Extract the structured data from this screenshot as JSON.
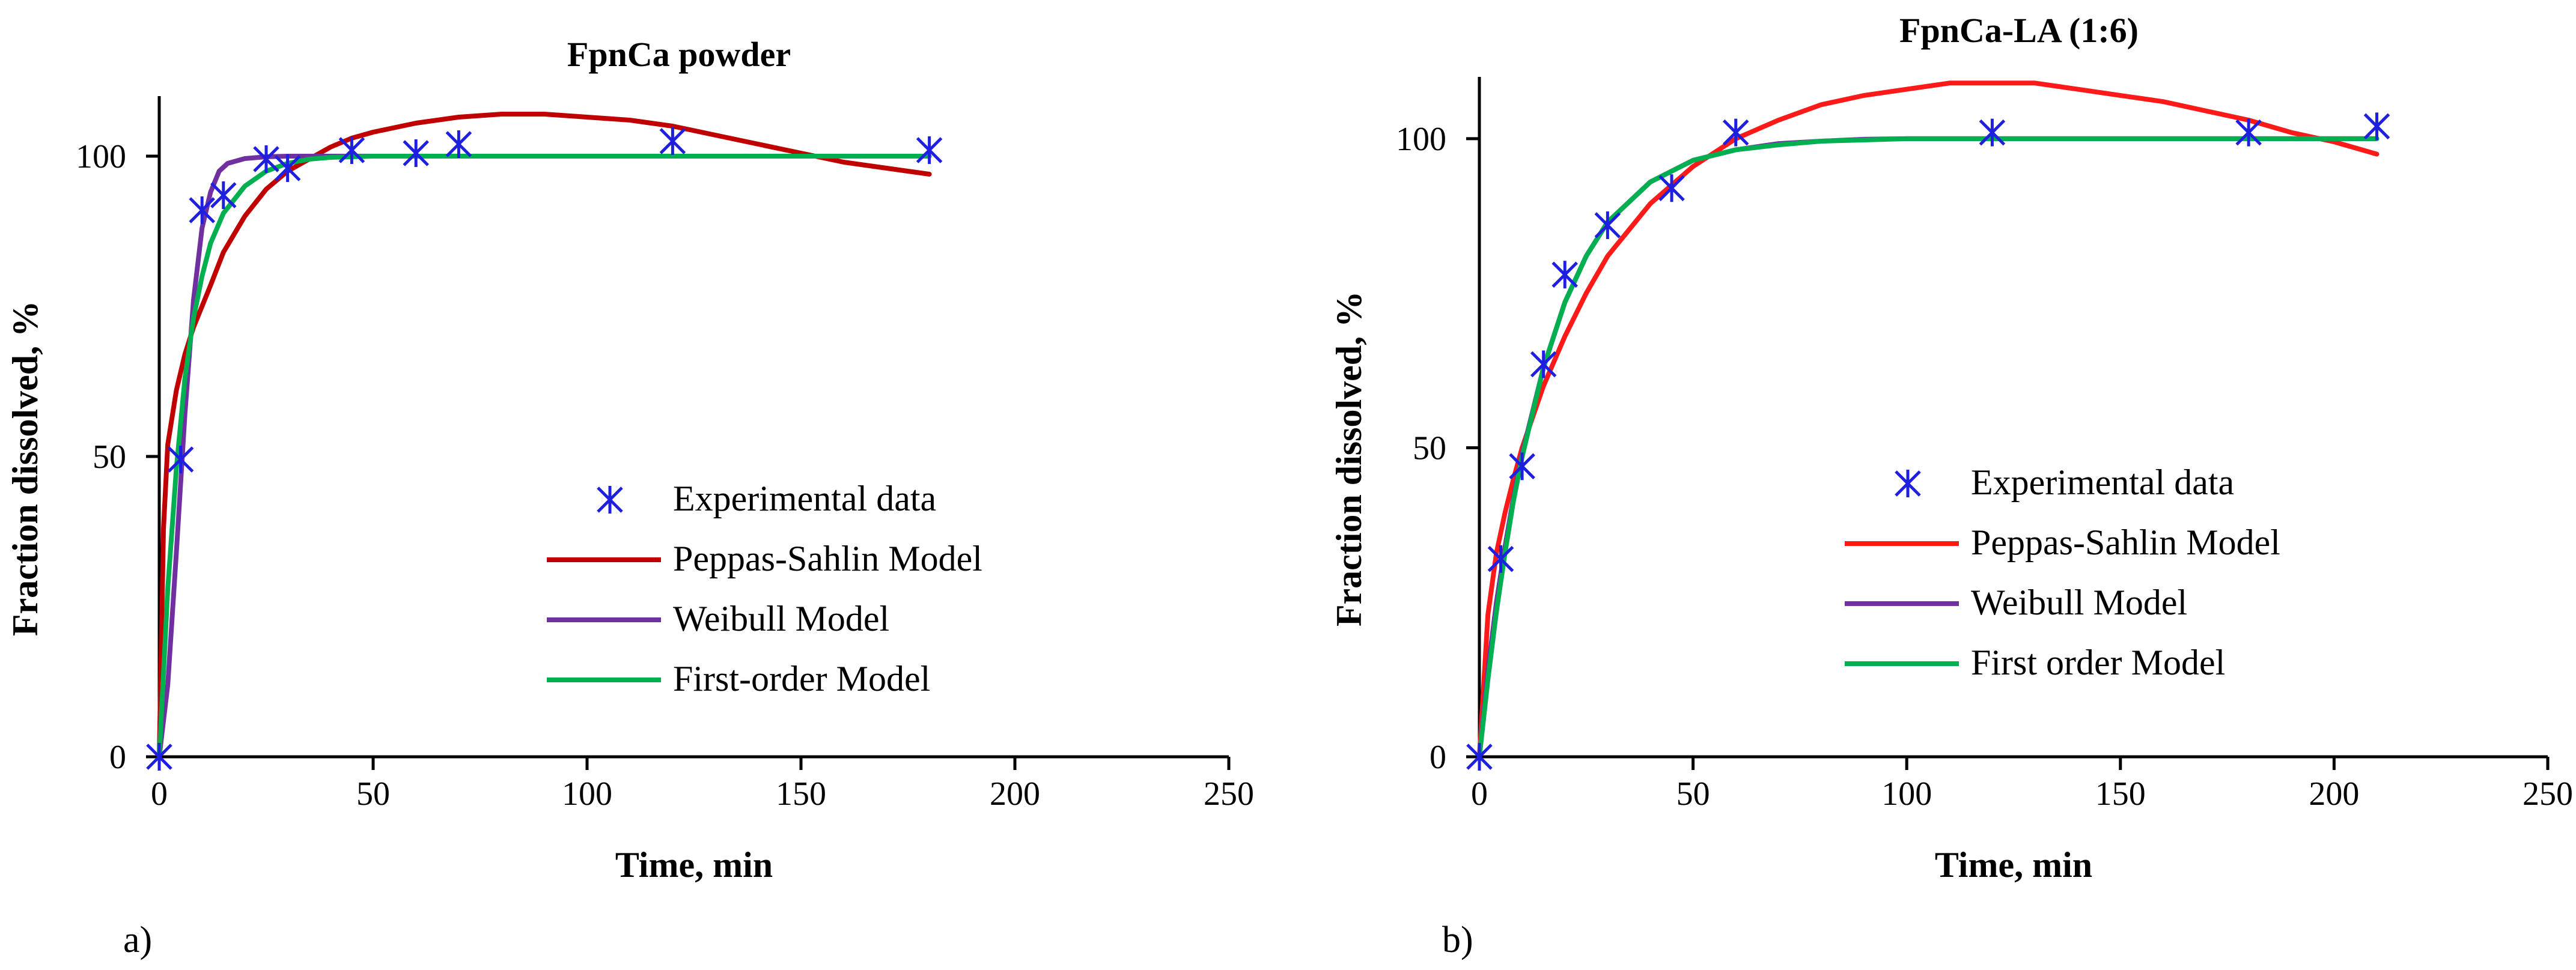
{
  "chart_data": [
    {
      "type": "line",
      "panel_label": "a)",
      "title": "FpnCa powder",
      "xlabel": "Time, min",
      "ylabel": "Fraction dissolved, %",
      "xlim": [
        0,
        250
      ],
      "ylim": [
        0,
        110
      ],
      "xticks": [
        0,
        50,
        100,
        150,
        200,
        250
      ],
      "yticks": [
        0,
        50,
        100
      ],
      "grid": false,
      "legend_position": "center-right",
      "series": [
        {
          "name": "Experimental data",
          "kind": "marker",
          "color": "#1f1fe0",
          "x": [
            0,
            5,
            10,
            15,
            25,
            30,
            45,
            60,
            70,
            120,
            180
          ],
          "y": [
            0,
            49.5,
            91,
            93.5,
            99.5,
            98,
            101,
            100.5,
            102,
            102.5,
            101
          ]
        },
        {
          "name": "Peppas-Sahlin Model",
          "kind": "line",
          "color": "#c00000",
          "x": [
            0,
            1,
            2,
            4,
            6,
            8,
            10,
            12,
            15,
            20,
            25,
            30,
            35,
            40,
            45,
            50,
            60,
            70,
            80,
            90,
            100,
            110,
            120,
            130,
            140,
            150,
            160,
            170,
            175,
            180
          ],
          "y": [
            0,
            38,
            52,
            61,
            67,
            71.5,
            75,
            78.5,
            84,
            90,
            94.5,
            97.5,
            99.5,
            101.5,
            103,
            104,
            105.5,
            106.5,
            107,
            107,
            106.5,
            106,
            105,
            103.5,
            102,
            100.5,
            99,
            98,
            97.5,
            97
          ]
        },
        {
          "name": "Weibull Model",
          "kind": "line",
          "color": "#7030a0",
          "x": [
            0,
            2,
            4,
            6,
            8,
            10,
            12,
            14,
            16,
            20,
            25,
            30,
            40,
            50,
            100,
            180
          ],
          "y": [
            0,
            12,
            34,
            57,
            76,
            88,
            94,
            97.5,
            98.8,
            99.6,
            99.9,
            100,
            100,
            100,
            100,
            100
          ]
        },
        {
          "name": "First-order Model",
          "kind": "line",
          "color": "#00b050",
          "x": [
            0,
            2,
            4,
            6,
            8,
            10,
            12,
            15,
            20,
            25,
            30,
            35,
            40,
            50,
            100,
            180
          ],
          "y": [
            0,
            28,
            48,
            63,
            73,
            80,
            85.5,
            90.5,
            95,
            97.5,
            98.8,
            99.5,
            99.8,
            100,
            100,
            100
          ]
        }
      ]
    },
    {
      "type": "line",
      "panel_label": "b)",
      "title": "FpnCa-LA (1:6)",
      "xlabel": "Time, min",
      "ylabel": "Fraction dissolved, %",
      "xlim": [
        0,
        250
      ],
      "ylim": [
        0,
        110
      ],
      "xticks": [
        0,
        50,
        100,
        150,
        200,
        250
      ],
      "yticks": [
        0,
        50,
        100
      ],
      "grid": false,
      "legend_position": "center-right",
      "series": [
        {
          "name": "Experimental data",
          "kind": "marker",
          "color": "#1f1fe0",
          "x": [
            0,
            5,
            10,
            15,
            20,
            30,
            45,
            60,
            120,
            180,
            210
          ],
          "y": [
            0,
            32,
            47,
            63.5,
            78,
            86,
            92,
            101,
            101,
            101,
            102
          ]
        },
        {
          "name": "Peppas-Sahlin Model",
          "kind": "line",
          "color": "#ff1a1a",
          "x": [
            0,
            2,
            4,
            6,
            8,
            10,
            15,
            20,
            25,
            30,
            40,
            50,
            60,
            70,
            80,
            90,
            100,
            110,
            120,
            130,
            140,
            150,
            160,
            170,
            180,
            190,
            200,
            210
          ],
          "y": [
            0,
            23,
            33,
            39.5,
            45,
            50,
            60,
            68,
            75,
            81,
            89.5,
            95.5,
            100,
            103,
            105.5,
            107,
            108,
            109,
            109,
            109,
            108,
            107,
            106,
            104.5,
            103,
            101,
            99.5,
            97.5
          ]
        },
        {
          "name": "Weibull Model",
          "kind": "line",
          "color": "#7030a0",
          "x": [
            0,
            2,
            4,
            6,
            8,
            10,
            15,
            20,
            25,
            30,
            40,
            50,
            60,
            70,
            80,
            90,
            100,
            120,
            150,
            180,
            210
          ],
          "y": [
            0,
            14,
            25,
            34,
            42,
            49,
            63,
            73.5,
            81,
            86.5,
            93,
            96.5,
            98.2,
            99.2,
            99.6,
            99.9,
            100,
            100,
            100,
            100,
            100
          ]
        },
        {
          "name": "First order Model",
          "kind": "line",
          "color": "#00b050",
          "x": [
            0,
            2,
            4,
            6,
            8,
            10,
            15,
            20,
            25,
            30,
            40,
            50,
            60,
            70,
            80,
            90,
            100,
            120,
            150,
            180,
            210
          ],
          "y": [
            0,
            12.5,
            23.5,
            33,
            41.5,
            48.5,
            63,
            73.5,
            81,
            86.5,
            93,
            96.5,
            98.2,
            99,
            99.6,
            99.8,
            100,
            100,
            100,
            100,
            100
          ]
        }
      ]
    }
  ]
}
